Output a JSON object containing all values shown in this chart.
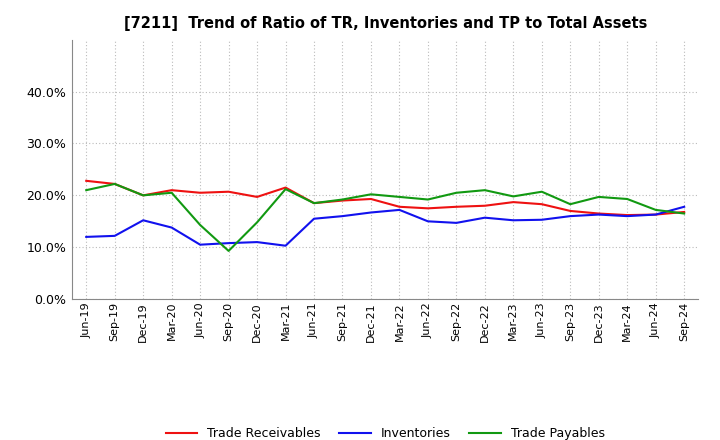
{
  "title": "[7211]  Trend of Ratio of TR, Inventories and TP to Total Assets",
  "x_labels": [
    "Jun-19",
    "Sep-19",
    "Dec-19",
    "Mar-20",
    "Jun-20",
    "Sep-20",
    "Dec-20",
    "Mar-21",
    "Jun-21",
    "Sep-21",
    "Dec-21",
    "Mar-22",
    "Jun-22",
    "Sep-22",
    "Dec-22",
    "Mar-23",
    "Jun-23",
    "Sep-23",
    "Dec-23",
    "Mar-24",
    "Jun-24",
    "Sep-24"
  ],
  "trade_receivables": [
    0.228,
    0.222,
    0.2,
    0.21,
    0.205,
    0.207,
    0.197,
    0.215,
    0.185,
    0.19,
    0.193,
    0.178,
    0.175,
    0.178,
    0.18,
    0.187,
    0.183,
    0.17,
    0.165,
    0.162,
    0.163,
    0.168
  ],
  "inventories": [
    0.12,
    0.122,
    0.152,
    0.138,
    0.105,
    0.108,
    0.11,
    0.103,
    0.155,
    0.16,
    0.167,
    0.172,
    0.15,
    0.147,
    0.157,
    0.152,
    0.153,
    0.16,
    0.163,
    0.16,
    0.163,
    0.178
  ],
  "trade_payables": [
    0.21,
    0.222,
    0.2,
    0.205,
    0.143,
    0.093,
    0.148,
    0.212,
    0.185,
    0.192,
    0.202,
    0.197,
    0.192,
    0.205,
    0.21,
    0.198,
    0.207,
    0.183,
    0.197,
    0.193,
    0.172,
    0.165
  ],
  "color_tr": "#EE1111",
  "color_inv": "#1111EE",
  "color_tp": "#119911",
  "ylim": [
    0.0,
    0.5
  ],
  "yticks": [
    0.0,
    0.1,
    0.2,
    0.3,
    0.4
  ],
  "background_color": "#FFFFFF",
  "grid_color": "#BBBBBB",
  "plot_bg": "#F0F0F0"
}
